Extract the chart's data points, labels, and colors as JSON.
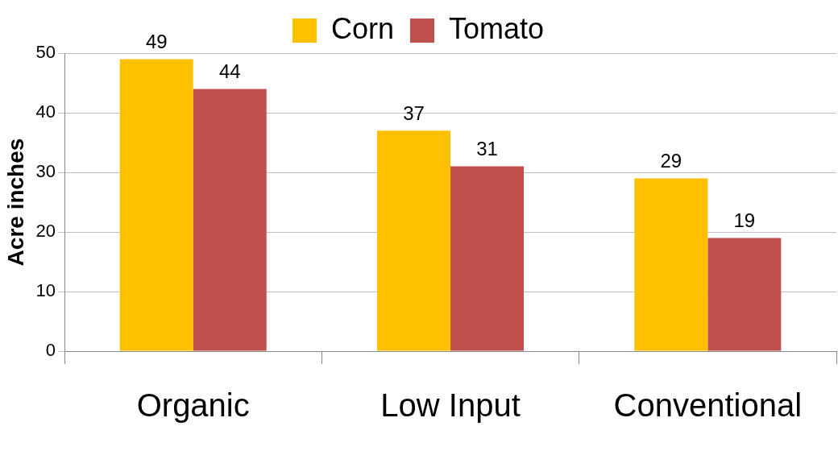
{
  "chart_data": {
    "type": "bar",
    "categories": [
      "Organic",
      "Low Input",
      "Conventional"
    ],
    "series": [
      {
        "name": "Corn",
        "color": "#ffc000",
        "values": [
          49,
          37,
          29
        ]
      },
      {
        "name": "Tomato",
        "color": "#c0504d",
        "values": [
          44,
          31,
          19
        ]
      }
    ],
    "ylabel": "Acre inches",
    "ylim": [
      0,
      50
    ],
    "yticks": [
      0,
      10,
      20,
      30,
      40,
      50
    ],
    "grid": "y",
    "legend": "top",
    "data_labels": true
  }
}
